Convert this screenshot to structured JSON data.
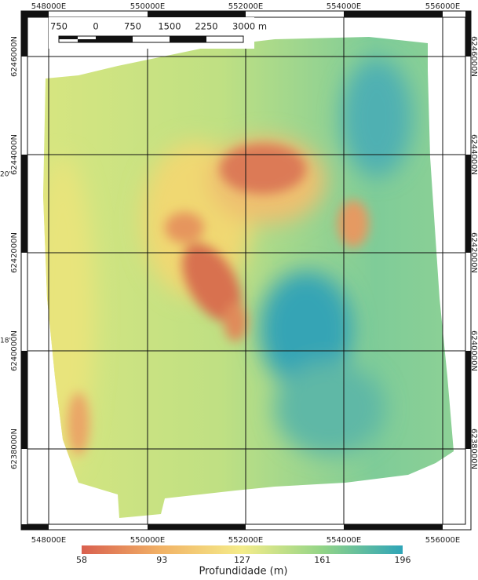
{
  "map": {
    "x_labels": [
      "548000E",
      "550000E",
      "552000E",
      "554000E",
      "556000E"
    ],
    "y_labels": [
      "6246000N",
      "6244000N",
      "6242000N",
      "6240000N",
      "6238000N"
    ],
    "edge_labels": [
      "20'",
      "18'"
    ],
    "scale_bar": [
      "750",
      "0",
      "750",
      "1500",
      "2250",
      "3000 m"
    ]
  },
  "legend": {
    "title": "Profundidade (m)",
    "ticks": [
      "58",
      "93",
      "127",
      "161",
      "196"
    ]
  }
}
